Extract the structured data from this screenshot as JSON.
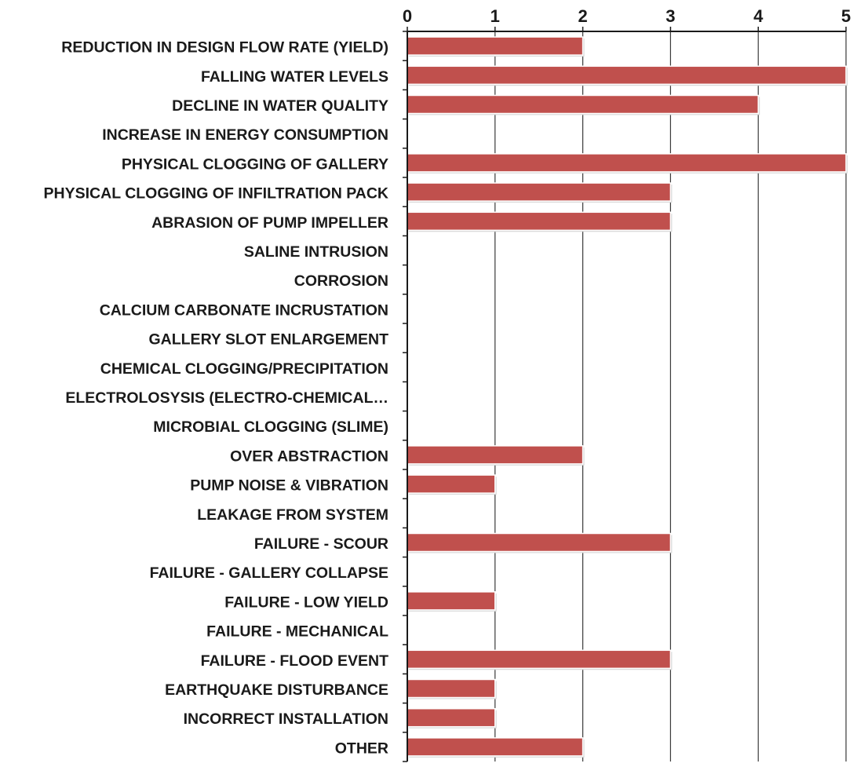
{
  "chart_data": {
    "type": "bar",
    "orientation": "horizontal",
    "title": "",
    "xlabel": "",
    "ylabel": "",
    "xlim": [
      0,
      5
    ],
    "x_ticks": [
      0,
      1,
      2,
      3,
      4,
      5
    ],
    "x_axis_position": "top",
    "grid": "vertical gridlines at each integer tick",
    "legend": "none",
    "bar_color": "#C0504D",
    "categories": [
      "REDUCTION IN DESIGN FLOW RATE (YIELD)",
      "FALLING WATER LEVELS",
      "DECLINE IN WATER QUALITY",
      "INCREASE IN ENERGY CONSUMPTION",
      "PHYSICAL CLOGGING OF GALLERY",
      "PHYSICAL CLOGGING OF INFILTRATION PACK",
      "ABRASION OF PUMP IMPELLER",
      "SALINE INTRUSION",
      "CORROSION",
      "CALCIUM CARBONATE INCRUSTATION",
      "GALLERY SLOT ENLARGEMENT",
      "CHEMICAL CLOGGING/PRECIPITATION",
      "ELECTROLOSYSIS (ELECTRO-CHEMICAL…",
      "MICROBIAL CLOGGING (SLIME)",
      "OVER ABSTRACTION",
      "PUMP NOISE & VIBRATION",
      "LEAKAGE FROM SYSTEM",
      "FAILURE - SCOUR",
      "FAILURE - GALLERY COLLAPSE",
      "FAILURE - LOW YIELD",
      "FAILURE - MECHANICAL",
      "FAILURE - FLOOD EVENT",
      "EARTHQUAKE DISTURBANCE",
      "INCORRECT INSTALLATION",
      "OTHER"
    ],
    "values": [
      2,
      5,
      4,
      0,
      5,
      3,
      3,
      0,
      0,
      0,
      0,
      0,
      0,
      0,
      2,
      1,
      0,
      3,
      0,
      1,
      0,
      3,
      1,
      1,
      2
    ]
  }
}
